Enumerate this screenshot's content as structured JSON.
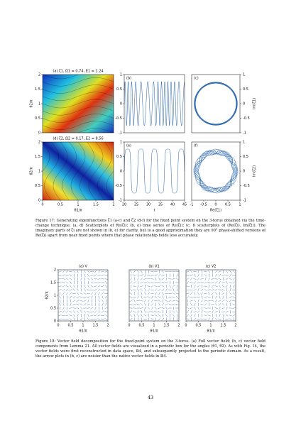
{
  "figure17": {
    "panels": [
      {
        "label": "(a) ζ1, Ω1 = 0.74, E1 = 1.24",
        "ylabel": "θ2/π",
        "yticks": [
          "2",
          "1.5",
          "1",
          "0.5",
          "0"
        ]
      },
      {
        "label": "(b)",
        "yticks": [
          "1",
          "0.5",
          "0",
          "-0.5",
          "-1"
        ]
      },
      {
        "label": "(c)",
        "ylabel": "Im(ζ1)",
        "yticks": [
          "1",
          "0.5",
          "0",
          "-0.5",
          "-1"
        ]
      },
      {
        "label": "(d) ζ2, Ω2 = 0.17, E2 = 8.56",
        "ylabel": "θ2/π",
        "yticks": [
          "2",
          "1.5",
          "1",
          "0.5",
          "0"
        ],
        "xticks": [
          "0",
          "0.5",
          "1",
          "1.5",
          "2"
        ],
        "xlabel": "θ1/π"
      },
      {
        "label": "(e)",
        "yticks": [
          "1",
          "0.5",
          "0",
          "-0.5",
          "-1"
        ],
        "xticks": [
          "20",
          "25",
          "30",
          "35",
          "40",
          "45"
        ],
        "xlabel": "t"
      },
      {
        "label": "(f)",
        "ylabel": "Im(ζ2)",
        "yticks": [
          "1",
          "0.5",
          "0",
          "-0.5",
          "-1"
        ],
        "xticks": [
          "-1",
          "-0.5",
          "0",
          "0.5",
          "1"
        ],
        "xlabel": "Re(ζ1)"
      }
    ],
    "caption": "Figure 17: Generating eigenfunctions ζ1 (a-c) and ζ2 (d-f) for the fixed point system on the 3-torus obtained via the time-change technique. (a, d) Scatterplots of Re(ζi); (b, e) time series of Re(ζi); (c, f) scatterplots of (Re(ζi), Im(ζi)). The imaginary parts of ζi are not shown in (b, e) for clarity, but to a good approximation they are 90° phase-shifted versions of Re(ζi) apart from near fixed points where that phase relationship holds less accurately."
  },
  "figure18": {
    "panels": [
      {
        "label": "(a) V",
        "ylabel": "θ2/π",
        "yticks": [
          "2",
          "1.5",
          "1",
          "0.5",
          "0"
        ],
        "xticks": [
          "0",
          "0.5",
          "1",
          "1.5",
          "2"
        ],
        "xlabel": "θ1/π"
      },
      {
        "label": "(b) V1",
        "xticks": [
          "0",
          "0.5",
          "1",
          "1.5",
          "2"
        ],
        "xlabel": "θ1/π"
      },
      {
        "label": "(c) V2",
        "xticks": [
          "0",
          "0.5",
          "1",
          "1.5",
          "2"
        ],
        "xlabel": "θ1/π"
      }
    ],
    "caption": "Figure 18: Vector field decomposition for the fixed-point system on the 3-torus. (a) Full vector field; (b, c) vector field components from Lemma 21. All vector fields are visualized in a periodic box for the angles (θ1, θ2). As with Fig. 14, the vector fields were first reconstructed in data space, ℝ4, and subsequently projected to the periodic domain. As a result, the arrow plots in (b, c) are noisier than the native vector fields in ℝ4."
  },
  "page_number": "43"
}
